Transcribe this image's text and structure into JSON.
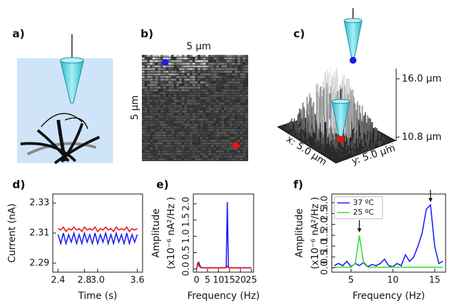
{
  "figure": {
    "panel_labels": [
      "a)",
      "b)",
      "c)",
      "d)",
      "e)",
      "f)"
    ],
    "b": {
      "width_label": "5 µm",
      "height_label": "5 µm"
    },
    "c": {
      "z_top": "16.0 µm",
      "z_bottom": "10.8 µm",
      "x_label": "x: 5.0 µm",
      "y_label": "y: 5.0 µm"
    }
  },
  "chart_data": [
    {
      "type": "line",
      "xlabel": "Time (s)",
      "ylabel": [
        "Current (nA)"
      ],
      "x": [
        2.4,
        2.44,
        2.48,
        2.52,
        2.56,
        2.6,
        2.64,
        2.68,
        2.72,
        2.76,
        2.8,
        2.84,
        2.88,
        2.92,
        2.96,
        3.0,
        3.04,
        3.08,
        3.12,
        3.16,
        3.2,
        3.24,
        3.28,
        3.32,
        3.36,
        3.4,
        3.44,
        3.48,
        3.52,
        3.56,
        3.6
      ],
      "series": [
        {
          "color": "#1a1aff",
          "values": [
            2.309,
            2.303,
            2.31,
            2.303,
            2.309,
            2.304,
            2.31,
            2.303,
            2.309,
            2.303,
            2.31,
            2.304,
            2.309,
            2.303,
            2.31,
            2.303,
            2.309,
            2.304,
            2.31,
            2.303,
            2.309,
            2.303,
            2.31,
            2.304,
            2.309,
            2.303,
            2.31,
            2.303,
            2.309,
            2.304,
            2.309
          ]
        },
        {
          "color": "#ee1111",
          "values": [
            2.313,
            2.312,
            2.314,
            2.311,
            2.313,
            2.312,
            2.314,
            2.312,
            2.313,
            2.311,
            2.314,
            2.312,
            2.313,
            2.312,
            2.314,
            2.311,
            2.313,
            2.312,
            2.314,
            2.312,
            2.313,
            2.311,
            2.314,
            2.312,
            2.313,
            2.312,
            2.314,
            2.311,
            2.313,
            2.312,
            2.313
          ]
        }
      ],
      "xlim": [
        2.32,
        3.68
      ],
      "xticks": [
        2.4,
        2.8,
        {
          "value": 3,
          "label": "3.0"
        },
        3.6
      ],
      "ylim": [
        2.284,
        2.336
      ],
      "yticks": [
        2.29,
        2.31,
        2.33
      ]
    },
    {
      "type": "line",
      "xlabel": "Frequency (Hz)",
      "ylabel": [
        "Amplitude",
        "(x10⁻⁶ nA²/Hz )"
      ],
      "x": [
        0,
        0.5,
        1,
        1.5,
        2,
        2.5,
        3,
        3.5,
        4,
        4.5,
        5,
        5.5,
        6,
        6.5,
        7,
        7.5,
        8,
        8.5,
        9,
        9.5,
        10,
        10.5,
        11,
        11.5,
        12,
        12.5,
        13,
        13.5,
        14,
        14.5,
        15,
        15.5,
        16,
        16.5,
        17,
        17.5,
        18,
        18.5,
        19,
        19.5,
        20,
        20.5,
        21,
        21.5,
        22,
        22.5,
        23,
        23.5,
        24,
        24.5,
        25
      ],
      "series": [
        {
          "color": "#1a1aff",
          "values": [
            0,
            0.15,
            0.2,
            0.1,
            0.05,
            0.04,
            0.03,
            0.04,
            0.03,
            0.03,
            0.04,
            0.03,
            0.03,
            0.04,
            0.03,
            0.03,
            0.03,
            0.04,
            0.03,
            0.03,
            0.03,
            0.04,
            0.03,
            0.03,
            0.04,
            0.03,
            0.04,
            0.05,
            2.05,
            0.05,
            0.03,
            0.03,
            0.04,
            0.03,
            0.03,
            0.03,
            0.04,
            0.03,
            0.03,
            0.03,
            0.04,
            0.03,
            0.03,
            0.03,
            0.04,
            0.03,
            0.03,
            0.03,
            0.04,
            0.03,
            0.03
          ]
        },
        {
          "color": "#ee1111",
          "values": [
            0,
            0.2,
            0.1,
            0.06,
            0.04,
            0.03,
            0.04,
            0.03,
            0.03,
            0.04,
            0.03,
            0.03,
            0.04,
            0.03,
            0.03,
            0.04,
            0.03,
            0.03,
            0.03,
            0.04,
            0.03,
            0.03,
            0.04,
            0.03,
            0.03,
            0.04,
            0.03,
            0.04,
            0.08,
            0.04,
            0.03,
            0.04,
            0.03,
            0.03,
            0.04,
            0.03,
            0.03,
            0.03,
            0.04,
            0.03,
            0.03,
            0.04,
            0.03,
            0.03,
            0.03,
            0.04,
            0.03,
            0.03,
            0.03,
            0.04,
            0.03
          ]
        }
      ],
      "xlim": [
        -1.5,
        26
      ],
      "xticks": [
        0,
        5,
        10,
        15,
        20,
        25
      ],
      "ylim": [
        -0.1,
        2.3
      ],
      "yticks": [
        {
          "value": 0,
          "label": "0.0"
        },
        0.5,
        {
          "value": 1,
          "label": "1.0"
        },
        1.5,
        {
          "value": 2,
          "label": "2.0"
        }
      ]
    },
    {
      "type": "line",
      "xlabel": "Frequency (Hz)",
      "ylabel": [
        "Amplitude",
        "(x10⁻⁶ nA²/Hz )"
      ],
      "legend": "upper left",
      "x": [
        3,
        3.5,
        4,
        4.5,
        5,
        5.5,
        6,
        6.5,
        7,
        7.5,
        8,
        8.5,
        9,
        9.5,
        10,
        10.5,
        11,
        11.5,
        12,
        12.5,
        13,
        13.5,
        14,
        14.5,
        15,
        15.5,
        16
      ],
      "series": [
        {
          "name": "37 ºC",
          "color": "#1a1aff",
          "values": [
            0.1,
            0.2,
            0.1,
            0.3,
            0.05,
            0.2,
            0.1,
            0.25,
            0.05,
            0.15,
            0.1,
            0.2,
            0.4,
            0.1,
            0.05,
            0.2,
            0.1,
            0.6,
            0.3,
            0.5,
            1.0,
            1.6,
            2.7,
            2.9,
            1.0,
            0.2,
            0.3
          ]
        },
        {
          "name": "25 ºC",
          "color": "#33dd33",
          "values": [
            0.03,
            0.02,
            0.04,
            0.02,
            0.03,
            0.2,
            1.5,
            0.2,
            0.03,
            0.02,
            0.04,
            0.02,
            0.03,
            0.02,
            0.03,
            0.02,
            0.04,
            0.02,
            0.03,
            0.02,
            0.03,
            0.02,
            0.03,
            0.02,
            0.03,
            0.02,
            0.03
          ]
        }
      ],
      "xlim": [
        2.7,
        16.3
      ],
      "xticks": [
        5,
        10,
        15
      ],
      "ylim": [
        -0.2,
        3.4
      ],
      "yticks": [
        {
          "value": 0,
          "label": "0.0"
        },
        0.5,
        {
          "value": 1,
          "label": "1.0"
        },
        1.5,
        {
          "value": 2,
          "label": "2.0"
        },
        2.5,
        {
          "value": 3,
          "label": "3.0"
        }
      ]
    }
  ]
}
